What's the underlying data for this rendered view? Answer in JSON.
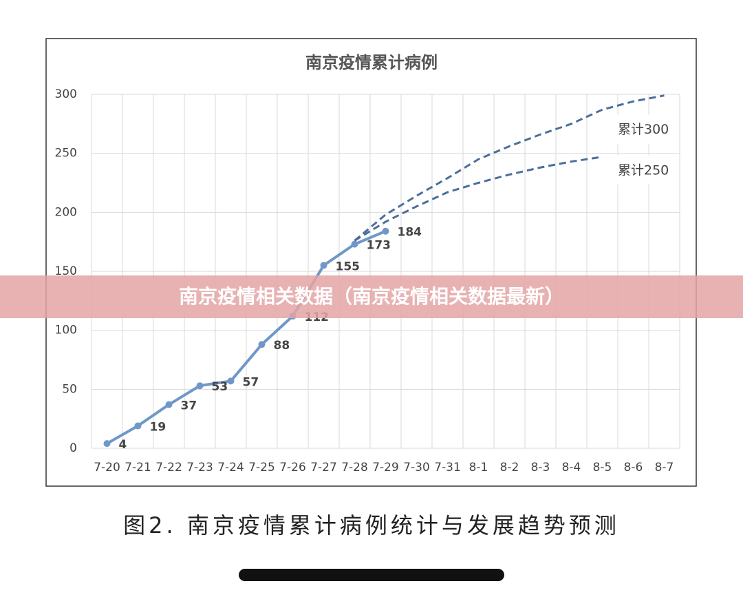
{
  "banner": "南京疫情相关数据（南京疫情相关数据最新）",
  "caption": "图2. 南京疫情累计病例统计与发展趋势预测",
  "chart_data": {
    "type": "line",
    "title": "南京疫情累计病例",
    "categories": [
      "7-20",
      "7-21",
      "7-22",
      "7-23",
      "7-24",
      "7-25",
      "7-26",
      "7-27",
      "7-28",
      "7-29",
      "7-30",
      "7-31",
      "8-1",
      "8-2",
      "8-3",
      "8-4",
      "8-5",
      "8-6",
      "8-7"
    ],
    "series": [
      {
        "color": "#6f98c8",
        "dashed": false,
        "data_labels": true,
        "values": [
          4,
          19,
          37,
          53,
          57,
          88,
          112,
          155,
          173,
          184,
          null,
          null,
          null,
          null,
          null,
          null,
          null,
          null,
          null
        ]
      },
      {
        "name": "累计300",
        "color": "#4a6f99",
        "dashed": true,
        "data_labels": false,
        "values": [
          null,
          null,
          null,
          null,
          null,
          null,
          null,
          null,
          176,
          198,
          214,
          229,
          245,
          256,
          266,
          275,
          287,
          294,
          299
        ]
      },
      {
        "name": "累计250",
        "color": "#4a6f99",
        "dashed": true,
        "data_labels": false,
        "values": [
          null,
          null,
          null,
          null,
          null,
          null,
          null,
          null,
          176,
          192,
          205,
          217,
          225,
          232,
          238,
          243,
          247,
          null,
          null
        ]
      }
    ],
    "ylim": [
      0,
      300
    ],
    "yticks": [
      0,
      50,
      100,
      150,
      200,
      250,
      300
    ],
    "grid": true
  }
}
